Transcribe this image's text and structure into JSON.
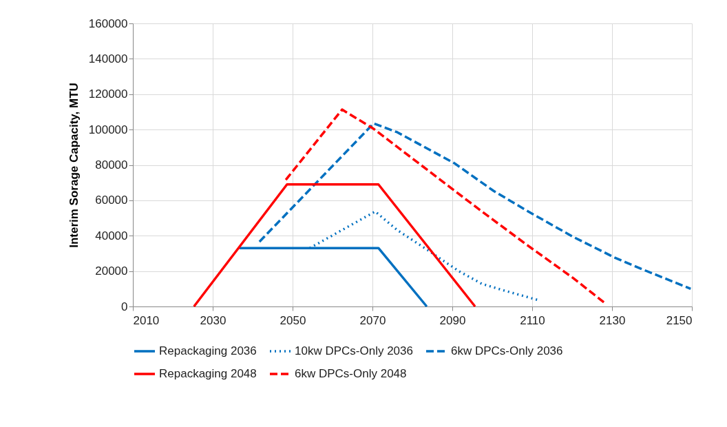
{
  "chart_data": {
    "type": "line",
    "ylabel": "Interim Sorage Capacity, MTU",
    "xlim": [
      2010,
      2150
    ],
    "xticks": [
      2010,
      2030,
      2050,
      2070,
      2090,
      2110,
      2130,
      2150
    ],
    "ylim": [
      0,
      160000
    ],
    "yticks": [
      0,
      20000,
      40000,
      60000,
      80000,
      100000,
      120000,
      140000,
      160000
    ],
    "grid": true,
    "legend": "bottom",
    "marker": "none",
    "series": [
      {
        "name": "Repackaging 2036",
        "color": "#0070c0",
        "line_style": "solid",
        "x": [
          2036.7,
          2071.5,
          2083.6
        ],
        "values": [
          33000,
          33000,
          0
        ]
      },
      {
        "name": "10kw DPCs-Only 2036",
        "color": "#0070c0",
        "line_style": "dotted",
        "x": [
          2054.3,
          2070.7,
          2076.2,
          2084.1,
          2086.6,
          2091.7,
          2097.4,
          2103,
          2111.7
        ],
        "values": [
          33000,
          53700,
          43200,
          31500,
          27600,
          19900,
          12800,
          9000,
          3500
        ]
      },
      {
        "name": "6kw DPCs-Only 2036",
        "color": "#0070c0",
        "line_style": "dashed",
        "x": [
          2041.7,
          2070.3,
          2076.2,
          2090.5,
          2100.3,
          2109,
          2120.3,
          2130.7,
          2137.6,
          2149.7
        ],
        "values": [
          36600,
          103500,
          98500,
          81000,
          65400,
          53700,
          39300,
          27600,
          21000,
          10000
        ]
      },
      {
        "name": "Repackaging 2048",
        "color": "#ff0000",
        "line_style": "solid",
        "x": [
          2025.3,
          2048.6,
          2071.5,
          2095.7
        ],
        "values": [
          0,
          69000,
          69000,
          0
        ]
      },
      {
        "name": "6kw DPCs-Only 2048",
        "color": "#ff0000",
        "line_style": "dashed",
        "x": [
          2048.3,
          2062.4,
          2070.3,
          2087,
          2097.4,
          2109,
          2120.3,
          2128.4
        ],
        "values": [
          71600,
          111300,
          100400,
          71600,
          53700,
          34300,
          16000,
          1600
        ]
      }
    ]
  }
}
